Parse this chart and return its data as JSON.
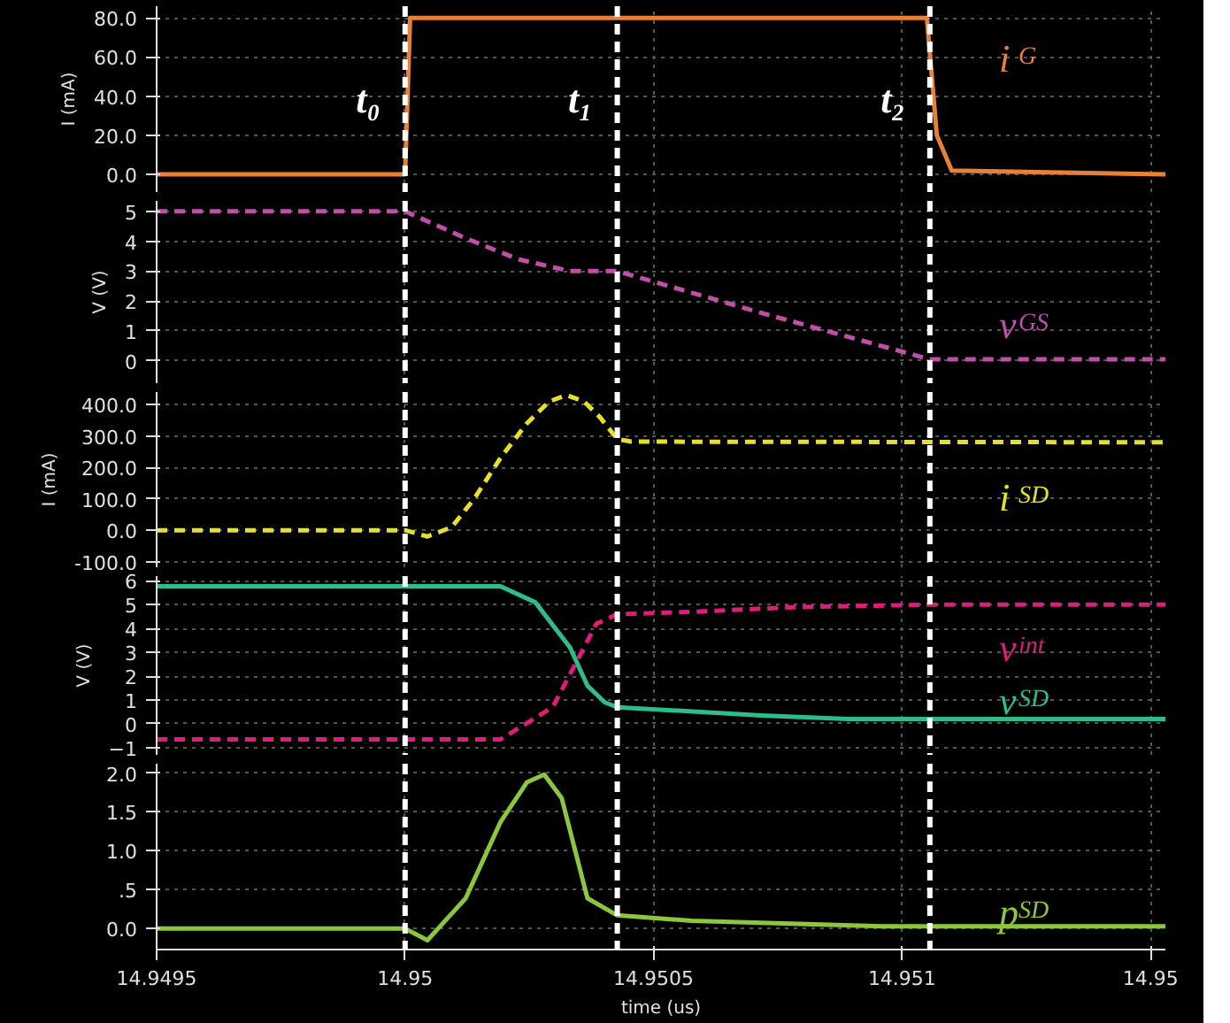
{
  "chart_data": [
    {
      "type": "line",
      "ylabel": "I (mA)",
      "xlim": [
        14.9495,
        14.95153
      ],
      "ylim": [
        -9,
        86
      ],
      "yticks": [
        {
          "value": 0,
          "label": "0.0"
        },
        {
          "value": 20,
          "label": "20.0"
        },
        {
          "value": 40,
          "label": "40.0"
        },
        {
          "value": 60,
          "label": "60.0"
        },
        {
          "value": 80,
          "label": "80.0"
        }
      ],
      "tick_labels": "y",
      "grid": true,
      "series": [
        {
          "name": "i$_{G}$",
          "color": "#e8803a",
          "line_style": "solid",
          "x": [
            14.9495,
            14.95,
            14.95001,
            14.95105,
            14.95107,
            14.9511,
            14.95153
          ],
          "values": [
            0,
            0,
            80,
            80,
            20,
            2,
            0
          ]
        }
      ],
      "ref_lines": [
        {
          "axis": "x",
          "value": 14.95,
          "label": "t₀",
          "color": "#ffffff",
          "line_style": "dashed"
        },
        {
          "axis": "x",
          "value": 14.950427,
          "label": "t₁",
          "color": "#ffffff",
          "line_style": "dashed"
        },
        {
          "axis": "x",
          "value": 14.951056,
          "label": "t₂",
          "color": "#ffffff",
          "line_style": "dashed"
        }
      ]
    },
    {
      "type": "line",
      "ylabel": "V (V)",
      "xlim": [
        14.9495,
        14.95153
      ],
      "ylim": [
        -0.75,
        5.35
      ],
      "yticks": [
        0,
        1,
        2,
        3,
        4,
        5
      ],
      "tick_labels": "y",
      "grid": true,
      "series": [
        {
          "name": "v$_{GS}$",
          "color": "#c04fa8",
          "line_style": "dashed",
          "x": [
            14.9495,
            14.95,
            14.950122,
            14.950227,
            14.950332,
            14.950427,
            14.950717,
            14.951056,
            14.95153
          ],
          "values": [
            5,
            5,
            4.1,
            3.4,
            3.0,
            3.0,
            1.6,
            0.05,
            0.05
          ]
        }
      ],
      "ref_lines": [
        {
          "axis": "x",
          "value": 14.95,
          "color": "#ffffff",
          "line_style": "dashed"
        },
        {
          "axis": "x",
          "value": 14.950427,
          "color": "#ffffff",
          "line_style": "dashed"
        },
        {
          "axis": "x",
          "value": 14.951056,
          "color": "#ffffff",
          "line_style": "dashed"
        }
      ]
    },
    {
      "type": "line",
      "ylabel": "I (mA)",
      "xlim": [
        14.9495,
        14.95153
      ],
      "ylim": [
        -118,
        440
      ],
      "yticks": [
        {
          "value": -100,
          "label": "-100.0"
        },
        {
          "value": 0,
          "label": "0.0"
        },
        {
          "value": 100,
          "label": "100.0"
        },
        {
          "value": 200,
          "label": "200.0"
        },
        {
          "value": 300,
          "label": "300.0"
        },
        {
          "value": 400,
          "label": "400.0"
        }
      ],
      "tick_labels": "y",
      "grid": true,
      "series": [
        {
          "name": "i$_{SD}$",
          "color": "#e6e02a",
          "line_style": "dashed",
          "x": [
            14.9495,
            14.95,
            14.950045,
            14.950094,
            14.950139,
            14.950192,
            14.950245,
            14.95029,
            14.950325,
            14.95036,
            14.950392,
            14.950427,
            14.950455,
            14.95153
          ],
          "values": [
            0,
            0,
            -20,
            10,
            100,
            230,
            340,
            410,
            430,
            410,
            360,
            290,
            282,
            280
          ]
        }
      ],
      "ref_lines": [
        {
          "axis": "x",
          "value": 14.95,
          "color": "#ffffff",
          "line_style": "dashed"
        },
        {
          "axis": "x",
          "value": 14.950427,
          "color": "#ffffff",
          "line_style": "dashed"
        },
        {
          "axis": "x",
          "value": 14.951056,
          "color": "#ffffff",
          "line_style": "dashed"
        }
      ]
    },
    {
      "type": "line",
      "ylabel": "V (V)",
      "xlim": [
        14.9495,
        14.95153
      ],
      "ylim": [
        -1.3,
        6.2
      ],
      "yticks": [
        -1,
        0,
        1,
        2,
        3,
        4,
        5,
        6
      ],
      "tick_labels": "y",
      "grid": true,
      "series": [
        {
          "name": "v$_{int}$",
          "color": "#e01c78",
          "line_style": "dashed",
          "x": [
            14.9495,
            14.950192,
            14.950297,
            14.95035,
            14.950385,
            14.950427,
            14.950577,
            14.950787,
            14.951056,
            14.95153
          ],
          "values": [
            -0.65,
            -0.65,
            0.7,
            2.8,
            4.2,
            4.6,
            4.7,
            4.9,
            5.0,
            5.0
          ]
        },
        {
          "name": "v$_{SD}$",
          "color": "#2ebc8a",
          "line_style": "solid",
          "x": [
            14.9495,
            14.950192,
            14.950262,
            14.950332,
            14.950367,
            14.950402,
            14.950427,
            14.950717,
            14.950892,
            14.95153
          ],
          "values": [
            5.77,
            5.77,
            5.1,
            3.2,
            1.6,
            0.9,
            0.7,
            0.35,
            0.2,
            0.2
          ]
        }
      ],
      "ref_lines": [
        {
          "axis": "x",
          "value": 14.95,
          "color": "#ffffff",
          "line_style": "dashed"
        },
        {
          "axis": "x",
          "value": 14.950427,
          "color": "#ffffff",
          "line_style": "dashed"
        },
        {
          "axis": "x",
          "value": 14.951056,
          "color": "#ffffff",
          "line_style": "dashed"
        }
      ]
    },
    {
      "type": "line",
      "xlabel": "time (us)",
      "xlim": [
        14.9495,
        14.95153
      ],
      "xticks": [
        14.9495,
        14.95,
        14.9505,
        14.951,
        {
          "value": 14.9515,
          "label": "14.95"
        }
      ],
      "ylim": [
        -0.27,
        2.12
      ],
      "yticks": [
        {
          "value": 0,
          "label": "0.0"
        },
        {
          "value": 0.5,
          "label": ".5"
        },
        {
          "value": 1,
          "label": "1.0"
        },
        {
          "value": 1.5,
          "label": "1.5"
        },
        {
          "value": 2,
          "label": "2.0"
        }
      ],
      "grid": true,
      "series": [
        {
          "name": "p$_{SD}$",
          "color": "#8cc63f",
          "line_style": "solid",
          "x": [
            14.9495,
            14.95,
            14.950045,
            14.950122,
            14.950192,
            14.950245,
            14.95028,
            14.950315,
            14.950367,
            14.950427,
            14.950577,
            14.950962,
            14.95153
          ],
          "values": [
            0,
            0,
            -0.15,
            0.39,
            1.37,
            1.88,
            1.98,
            1.68,
            0.39,
            0.17,
            0.1,
            0.03,
            0.03
          ]
        }
      ],
      "ref_lines": [
        {
          "axis": "x",
          "value": 14.95,
          "color": "#ffffff",
          "line_style": "dashed"
        },
        {
          "axis": "x",
          "value": 14.950427,
          "color": "#ffffff",
          "line_style": "dashed"
        },
        {
          "axis": "x",
          "value": 14.951056,
          "color": "#ffffff",
          "line_style": "dashed"
        }
      ]
    }
  ]
}
